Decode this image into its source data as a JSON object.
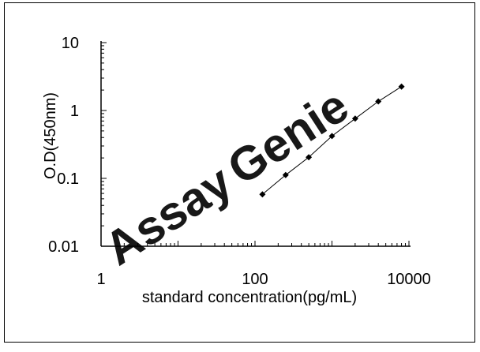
{
  "chart_data": {
    "type": "scatter",
    "title": "",
    "xlabel": "standard concentration(pg/mL)",
    "ylabel": "O.D(450nm)",
    "xscale": "log",
    "yscale": "log",
    "xlim": [
      1,
      10000
    ],
    "ylim": [
      0.01,
      10
    ],
    "x_tick_labels": [
      "1",
      "100",
      "10000"
    ],
    "y_tick_labels": [
      "10",
      "1",
      "0.1",
      "0.01"
    ],
    "x_major_ticks": [
      1,
      10,
      100,
      1000,
      10000
    ],
    "y_major_ticks": [
      0.01,
      0.1,
      1,
      10
    ],
    "grid": false,
    "legend": "none",
    "marker": "diamond",
    "line_color": "#000000",
    "series": [
      {
        "x": [
          125,
          250,
          500,
          1000,
          2000,
          4000,
          8000
        ],
        "y": [
          0.058,
          0.112,
          0.205,
          0.42,
          0.76,
          1.36,
          2.25
        ]
      }
    ],
    "watermark": "AssayGenie"
  },
  "colors": {
    "axis": "#000000",
    "watermark_assay": "#a9d3ea",
    "watermark_genie": "#b7bec8"
  }
}
